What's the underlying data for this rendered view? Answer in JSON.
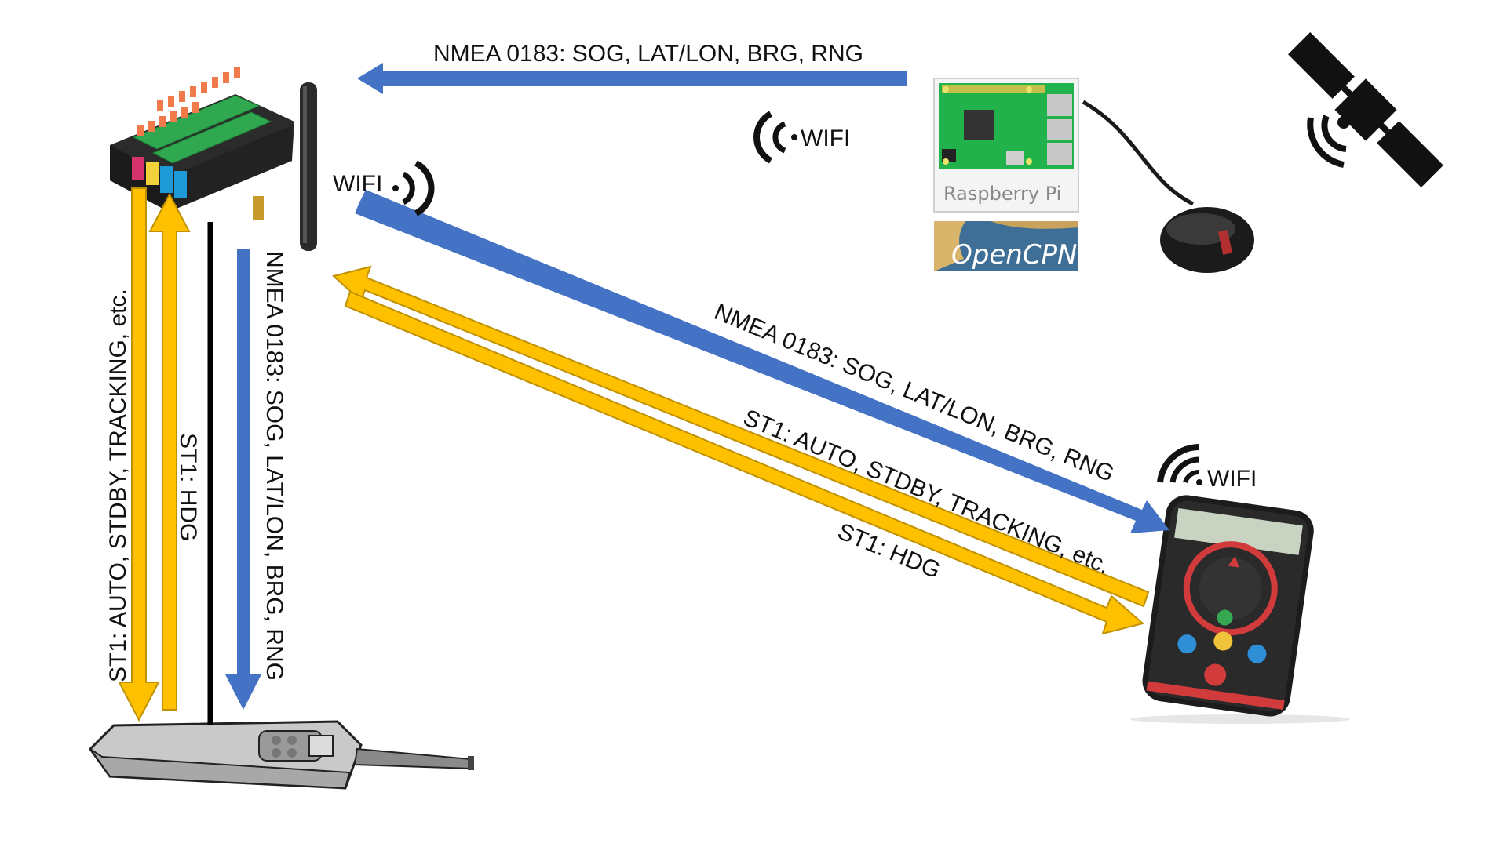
{
  "colors": {
    "nmea_arrow": "#4472C4",
    "st1_arrow": "#FFC000",
    "st1_arrow_edge": "#BF9000",
    "cable": "#000000"
  },
  "labels": {
    "top_nmea": "NMEA 0183: SOG, LAT/LON, BRG, RNG",
    "diag_nmea": "NMEA 0183: SOG, LAT/LON, BRG, RNG",
    "diag_st1_cmd": "ST1: AUTO, STDBY, TRACKING, etc.",
    "diag_st1_hdg": "ST1: HDG",
    "vert_st1_cmd": "ST1: AUTO, STDBY, TRACKING, etc.",
    "vert_st1_hdg": "ST1: HDG",
    "vert_nmea": "NMEA 0183: SOG, LAT/LON, BRG, RNG"
  },
  "wifi": {
    "rpi": "WIFI",
    "gateway": "WIFI",
    "phone": "WIFI"
  },
  "devices": {
    "raspberry_pi_caption": "Raspberry Pi",
    "opencpn_caption": "OpenCPN"
  },
  "icons": {
    "gateway": "wifi-gateway-terminal-block-icon",
    "raspberry_pi": "raspberry-pi-board-icon",
    "gps_puck": "gps-antenna-puck-icon",
    "satellite": "satellite-icon",
    "phone": "smartphone-autopilot-app-icon",
    "remote": "handheld-autopilot-remote-icon"
  }
}
